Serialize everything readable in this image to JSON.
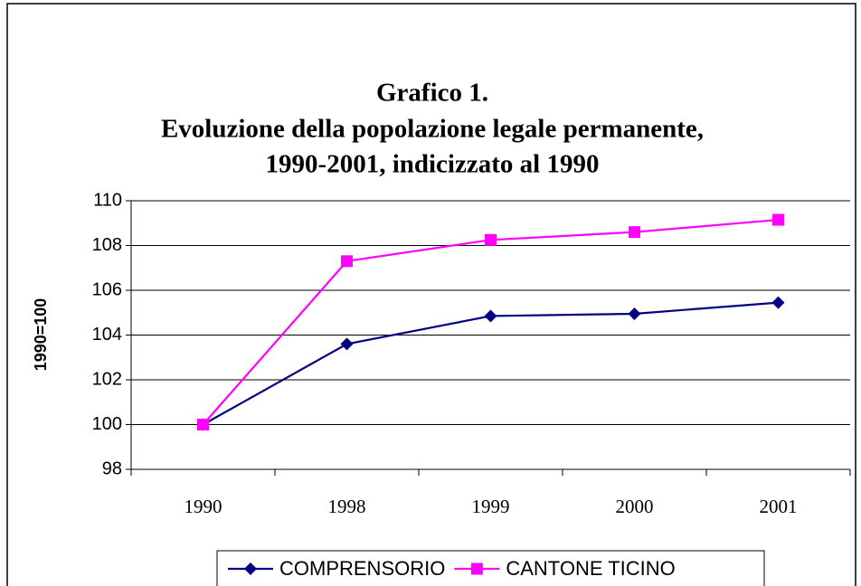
{
  "chart_data": {
    "type": "line",
    "title": [
      "Grafico 1.",
      "Evoluzione della popolazione legale permanente,",
      "1990-2001, indicizzato al 1990"
    ],
    "y_label": "1990=100",
    "categories": [
      "1990",
      "1998",
      "1999",
      "2000",
      "2001"
    ],
    "series": [
      {
        "name": "COMPRENSORIO",
        "color": "#000080",
        "marker": "diamond",
        "values": [
          100,
          103.6,
          104.85,
          104.95,
          105.45
        ]
      },
      {
        "name": "CANTONE TICINO",
        "color": "#ff00ff",
        "marker": "square",
        "values": [
          100,
          107.3,
          108.25,
          108.6,
          109.15
        ]
      }
    ],
    "ylim": [
      98,
      110
    ],
    "yticks": [
      98,
      100,
      102,
      104,
      106,
      108,
      110
    ],
    "grid": true,
    "legend": "bottom"
  }
}
